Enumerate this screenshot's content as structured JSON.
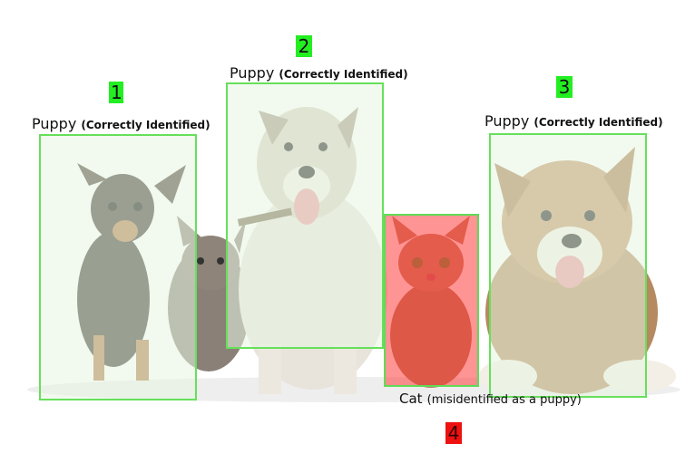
{
  "detections": [
    {
      "number": "1",
      "label": "Puppy",
      "note": "(Correctly Identified)",
      "status_color": "#22ee22"
    },
    {
      "number": "2",
      "label": "Puppy",
      "note": "(Correctly Identified)",
      "status_color": "#22ee22"
    },
    {
      "number": "3",
      "label": "Puppy",
      "note": "(Correctly Identified)",
      "status_color": "#22ee22"
    },
    {
      "number": "4",
      "label": "Cat",
      "note": "(misidentified as a puppy)",
      "status_color": "#ee1111"
    }
  ],
  "colors": {
    "box_outline": "#66e05a",
    "correct_fill": "#e8f5e2",
    "wrong_fill": "#ff3c3c"
  }
}
